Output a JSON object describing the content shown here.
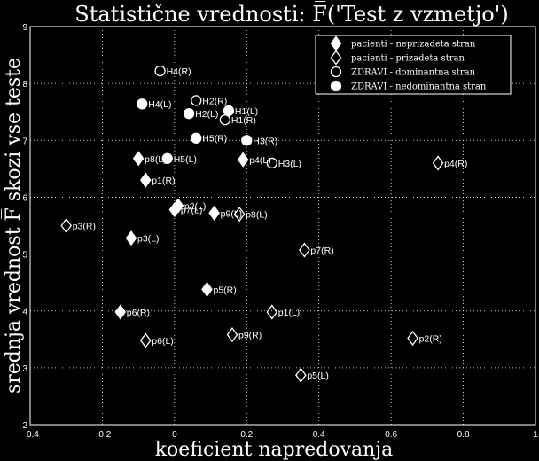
{
  "chart_data": {
    "type": "scatter",
    "title": "Statistične vrednosti: F̅('Test z vzmetjo')",
    "xlabel": "koeficient napredovanja",
    "ylabel": "srednja vrednost F̅ skozi vse teste",
    "xlim": [
      -0.4,
      1.0
    ],
    "ylim": [
      2,
      9
    ],
    "x_ticks": [
      "−0.4",
      "−0.2",
      "0",
      "0.2",
      "0.4",
      "0.6",
      "0.8",
      "1"
    ],
    "y_ticks": [
      "2",
      "3",
      "4",
      "5",
      "6",
      "7",
      "8",
      "9"
    ],
    "grid": true,
    "legend_position": "top-right",
    "colors": {
      "background": "#000000",
      "foreground": "#ffffff"
    },
    "series": [
      {
        "name": "pacienti - neprizadeta stran",
        "marker": "diamond-filled",
        "points": [
          {
            "label": "p1(R)",
            "x": -0.08,
            "y": 6.3
          },
          {
            "label": "p2(L)",
            "x": 0.01,
            "y": 5.85
          },
          {
            "label": "p3(L)",
            "x": -0.12,
            "y": 5.28
          },
          {
            "label": "p4(L)",
            "x": 0.19,
            "y": 6.66
          },
          {
            "label": "p5(R)",
            "x": 0.09,
            "y": 4.38
          },
          {
            "label": "p6(R)",
            "x": -0.15,
            "y": 3.98
          },
          {
            "label": "p7(L)",
            "x": 0.0,
            "y": 5.78
          },
          {
            "label": "p8(L)",
            "x": -0.1,
            "y": 6.68
          },
          {
            "label": "p9(L)",
            "x": 0.11,
            "y": 5.72
          }
        ]
      },
      {
        "name": "pacienti - prizadeta stran",
        "marker": "diamond-open",
        "points": [
          {
            "label": "p1(L)",
            "x": 0.27,
            "y": 3.98
          },
          {
            "label": "p2(R)",
            "x": 0.66,
            "y": 3.52
          },
          {
            "label": "p3(R)",
            "x": -0.3,
            "y": 5.5
          },
          {
            "label": "p4(R)",
            "x": 0.73,
            "y": 6.6
          },
          {
            "label": "p5(L)",
            "x": 0.35,
            "y": 2.87
          },
          {
            "label": "p6(L)",
            "x": -0.08,
            "y": 3.48
          },
          {
            "label": "p7(R)",
            "x": 0.36,
            "y": 5.07
          },
          {
            "label": "p8(L)",
            "x": 0.18,
            "y": 5.7
          },
          {
            "label": "p9(R)",
            "x": 0.16,
            "y": 3.58
          }
        ]
      },
      {
        "name": "ZDRAVI - dominantna stran",
        "marker": "circle-open",
        "points": [
          {
            "label": "H4(R)",
            "x": -0.04,
            "y": 8.22
          },
          {
            "label": "H2(R)",
            "x": 0.06,
            "y": 7.7
          },
          {
            "label": "H1(R)",
            "x": 0.14,
            "y": 7.36
          },
          {
            "label": "H3(L)",
            "x": 0.27,
            "y": 6.6
          }
        ]
      },
      {
        "name": "ZDRAVI - nedominantna stran",
        "marker": "circle-filled",
        "points": [
          {
            "label": "H4(L)",
            "x": -0.09,
            "y": 7.64
          },
          {
            "label": "H2(L)",
            "x": 0.04,
            "y": 7.47
          },
          {
            "label": "H1(L)",
            "x": 0.15,
            "y": 7.52
          },
          {
            "label": "H5(R)",
            "x": 0.06,
            "y": 7.04
          },
          {
            "label": "H3(R)",
            "x": 0.2,
            "y": 7.0
          },
          {
            "label": "H5(L)",
            "x": -0.02,
            "y": 6.68
          }
        ]
      }
    ]
  }
}
